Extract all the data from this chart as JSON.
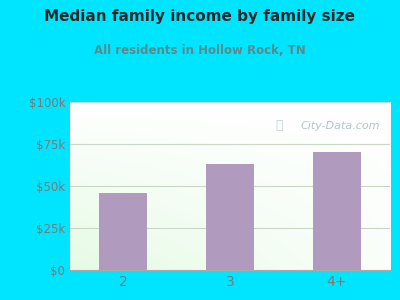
{
  "title": "Median family income by family size",
  "subtitle": "All residents in Hollow Rock, TN",
  "categories": [
    "2",
    "3",
    "4+"
  ],
  "values": [
    46000,
    63000,
    70500
  ],
  "bar_color": "#b09abe",
  "ylim": [
    0,
    100000
  ],
  "yticks": [
    0,
    25000,
    50000,
    75000,
    100000
  ],
  "ytick_labels": [
    "$0",
    "$25k",
    "$50k",
    "$75k",
    "$100k"
  ],
  "background_outer": "#00e5ff",
  "title_color": "#2a2a2a",
  "subtitle_color": "#5b8a8a",
  "tick_color": "#7a7a7a",
  "grid_color": "#c8d8c4",
  "watermark": "City-Data.com",
  "watermark_color": "#aabbc0",
  "gradient_colors": [
    "#cce8cc",
    "#f5faf5",
    "#ffffff"
  ],
  "bar_width": 0.45
}
